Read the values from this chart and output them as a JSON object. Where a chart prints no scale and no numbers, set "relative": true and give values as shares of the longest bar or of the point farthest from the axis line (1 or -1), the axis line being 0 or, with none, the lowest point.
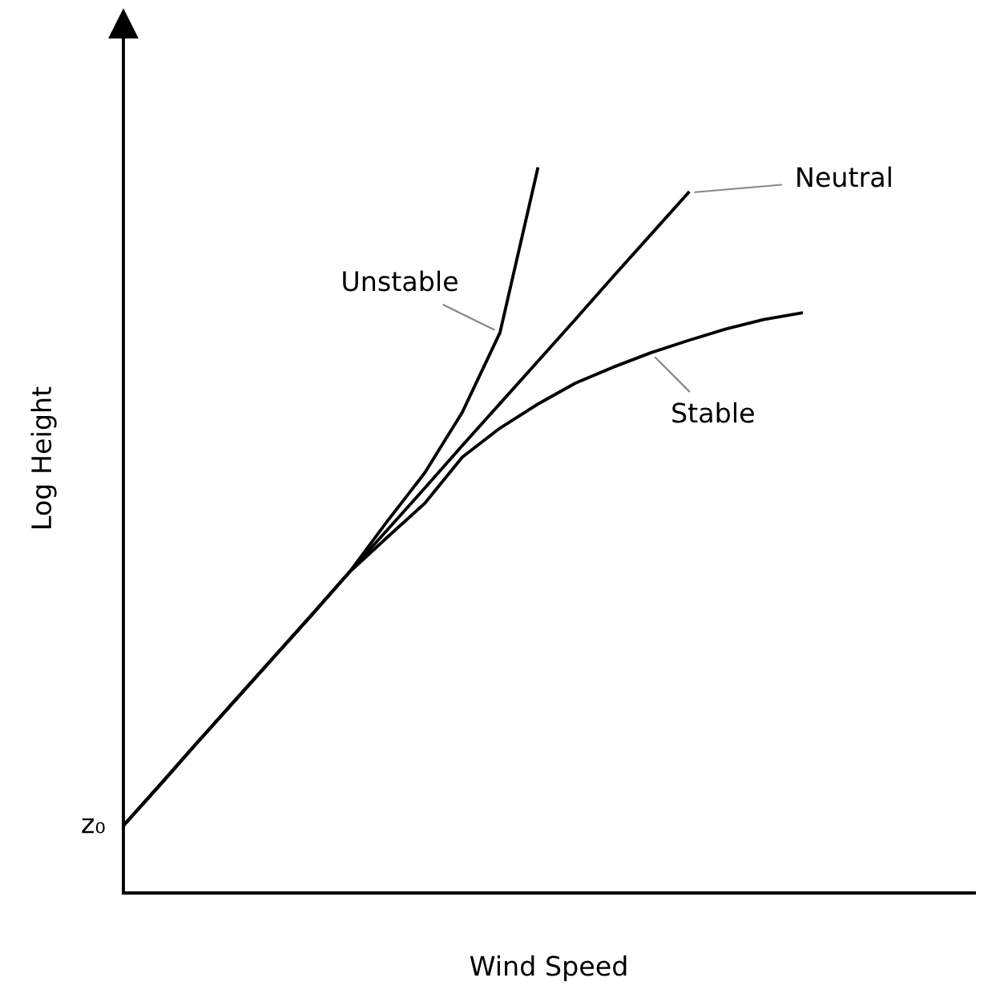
{
  "chart_data": {
    "type": "line",
    "relative": true,
    "xlabel": "Wind Speed",
    "ylabel": "Log Height",
    "categories": [
      null,
      null,
      null,
      null,
      null,
      null,
      null,
      null,
      null,
      null,
      null,
      null,
      null,
      null,
      null,
      null,
      null,
      null,
      null
    ],
    "series": [
      {
        "name": "Unstable",
        "color": "#000000",
        "values": [
          0.093,
          0.151,
          0.21,
          0.268,
          0.326,
          0.384,
          0.443,
          0.513,
          0.58,
          0.664,
          0.774,
          1.0,
          null,
          null,
          null,
          null,
          null,
          null,
          null
        ]
      },
      {
        "name": "Neutral",
        "color": "#000000",
        "values": [
          0.093,
          0.151,
          0.21,
          0.268,
          0.326,
          0.384,
          0.443,
          0.501,
          0.559,
          0.618,
          0.676,
          0.734,
          0.792,
          0.851,
          0.909,
          0.967,
          null,
          null,
          null
        ]
      },
      {
        "name": "Stable",
        "color": "#000000",
        "values": [
          0.093,
          0.151,
          0.21,
          0.268,
          0.326,
          0.384,
          0.443,
          0.491,
          0.538,
          0.602,
          0.642,
          0.675,
          0.704,
          0.726,
          0.746,
          0.763,
          0.779,
          0.792,
          0.801
        ]
      }
    ],
    "annotations": [
      "z₀"
    ],
    "legend": false,
    "marker": "none",
    "line_style": "solid"
  }
}
